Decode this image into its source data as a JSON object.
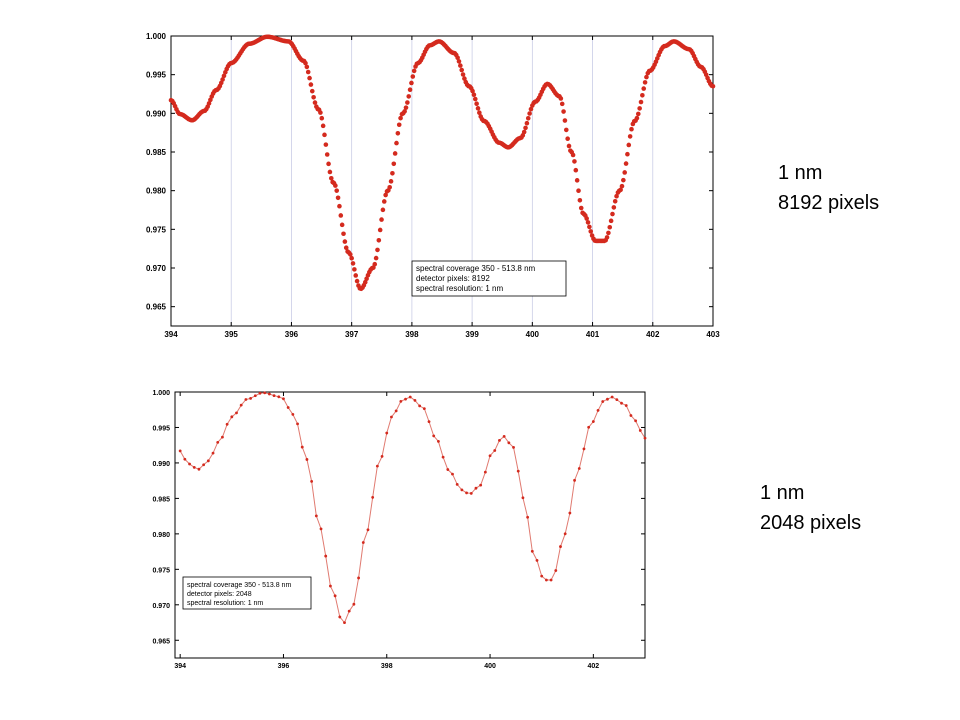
{
  "chart_data": [
    {
      "type": "scatter",
      "title": "",
      "xlabel": "",
      "ylabel": "",
      "xlim": [
        394,
        403
      ],
      "ylim": [
        0.9625,
        1.0
      ],
      "xticks": [
        "394",
        "395",
        "396",
        "397",
        "398",
        "399",
        "400",
        "401",
        "402",
        "403"
      ],
      "yticks": [
        "1.000",
        "0.995",
        "0.990",
        "0.985",
        "0.980",
        "0.975",
        "0.970",
        "0.965"
      ],
      "grid": "vertical",
      "connect": false,
      "marker_color": "#d42a1e",
      "sample_count": 400,
      "series": [
        {
          "values": [
            [
              394.0,
              0.9917
            ],
            [
              394.15,
              0.9899
            ],
            [
              394.35,
              0.9891
            ],
            [
              394.55,
              0.9903
            ],
            [
              394.75,
              0.993
            ],
            [
              395.0,
              0.9965
            ],
            [
              395.3,
              0.999
            ],
            [
              395.6,
              0.9999
            ],
            [
              395.95,
              0.9993
            ],
            [
              396.2,
              0.9968
            ],
            [
              396.45,
              0.9905
            ],
            [
              396.7,
              0.981
            ],
            [
              396.95,
              0.972
            ],
            [
              397.15,
              0.9673
            ],
            [
              397.35,
              0.97
            ],
            [
              397.6,
              0.98
            ],
            [
              397.85,
              0.99
            ],
            [
              398.1,
              0.9965
            ],
            [
              398.3,
              0.9988
            ],
            [
              398.45,
              0.9993
            ],
            [
              398.7,
              0.9978
            ],
            [
              398.95,
              0.9935
            ],
            [
              399.2,
              0.989
            ],
            [
              399.45,
              0.9862
            ],
            [
              399.6,
              0.9856
            ],
            [
              399.8,
              0.9868
            ],
            [
              400.05,
              0.9915
            ],
            [
              400.25,
              0.9938
            ],
            [
              400.45,
              0.9922
            ],
            [
              400.65,
              0.985
            ],
            [
              400.85,
              0.977
            ],
            [
              401.05,
              0.9735
            ],
            [
              401.2,
              0.9735
            ],
            [
              401.45,
              0.98
            ],
            [
              401.7,
              0.989
            ],
            [
              401.95,
              0.9955
            ],
            [
              402.2,
              0.9987
            ],
            [
              402.35,
              0.9993
            ],
            [
              402.6,
              0.9983
            ],
            [
              402.8,
              0.996
            ],
            [
              403.0,
              0.9935
            ]
          ]
        }
      ],
      "legend": {
        "position": "lower-right",
        "lines": [
          "spectral coverage 350 - 513.8 nm",
          "detector pixels: 8192",
          "spectral resolution: 1 nm"
        ]
      }
    },
    {
      "type": "line",
      "title": "",
      "xlabel": "",
      "ylabel": "",
      "xlim": [
        393.9,
        403.0
      ],
      "ylim": [
        0.9625,
        1.0
      ],
      "xticks": [
        "394",
        "396",
        "398",
        "400",
        "402"
      ],
      "yticks": [
        "1.000",
        "0.995",
        "0.990",
        "0.985",
        "0.980",
        "0.975",
        "0.970",
        "0.965"
      ],
      "grid": "none",
      "connect": true,
      "marker_color": "#d42a1e",
      "line_color": "#e07a70",
      "sample_count": 100,
      "series": [
        {
          "values": [
            [
              394.0,
              0.9917
            ],
            [
              394.15,
              0.9899
            ],
            [
              394.35,
              0.9891
            ],
            [
              394.55,
              0.9903
            ],
            [
              394.75,
              0.993
            ],
            [
              395.0,
              0.9965
            ],
            [
              395.3,
              0.999
            ],
            [
              395.6,
              0.9999
            ],
            [
              395.95,
              0.9993
            ],
            [
              396.2,
              0.9968
            ],
            [
              396.45,
              0.9905
            ],
            [
              396.7,
              0.981
            ],
            [
              396.95,
              0.972
            ],
            [
              397.15,
              0.9673
            ],
            [
              397.35,
              0.97
            ],
            [
              397.6,
              0.98
            ],
            [
              397.85,
              0.99
            ],
            [
              398.1,
              0.9965
            ],
            [
              398.3,
              0.9988
            ],
            [
              398.45,
              0.9993
            ],
            [
              398.7,
              0.9978
            ],
            [
              398.95,
              0.9935
            ],
            [
              399.2,
              0.989
            ],
            [
              399.45,
              0.9862
            ],
            [
              399.6,
              0.9856
            ],
            [
              399.8,
              0.9868
            ],
            [
              400.05,
              0.9915
            ],
            [
              400.25,
              0.9938
            ],
            [
              400.45,
              0.9922
            ],
            [
              400.65,
              0.985
            ],
            [
              400.85,
              0.977
            ],
            [
              401.05,
              0.9735
            ],
            [
              401.2,
              0.9735
            ],
            [
              401.45,
              0.98
            ],
            [
              401.7,
              0.989
            ],
            [
              401.95,
              0.9955
            ],
            [
              402.2,
              0.9987
            ],
            [
              402.35,
              0.9993
            ],
            [
              402.6,
              0.9983
            ],
            [
              402.8,
              0.996
            ],
            [
              403.0,
              0.9935
            ]
          ]
        }
      ],
      "legend": {
        "position": "lower-left",
        "lines": [
          "spectral coverage 350 - 513.8 nm",
          "detector pixels: 2048",
          "spectral resolution: 1 nm"
        ]
      }
    }
  ],
  "annotations": [
    {
      "line1": "1 nm",
      "line2": "8192 pixels"
    },
    {
      "line1": "1 nm",
      "line2": "2048 pixels"
    }
  ]
}
